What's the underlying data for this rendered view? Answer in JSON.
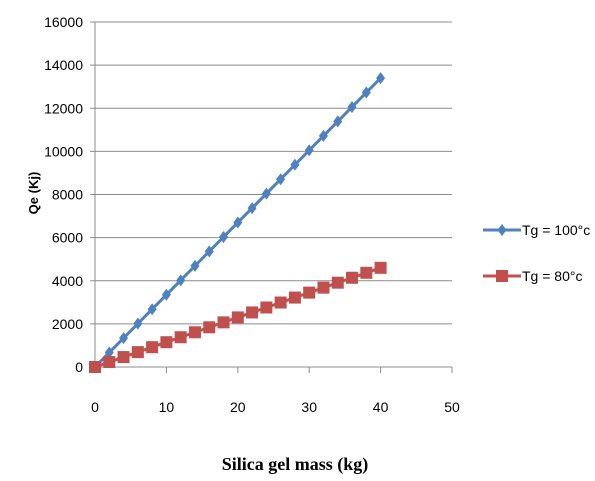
{
  "chart_data": {
    "type": "line",
    "title": "",
    "xlabel": "Silica gel mass (kg)",
    "ylabel": "Qe (Kj)",
    "xlim": [
      0,
      50
    ],
    "ylim": [
      0,
      16000
    ],
    "x_ticks": [
      0,
      10,
      20,
      30,
      40,
      50
    ],
    "y_ticks": [
      0,
      2000,
      4000,
      6000,
      8000,
      10000,
      12000,
      14000,
      16000
    ],
    "x_tick_labels": [
      "0",
      "10",
      "20",
      "30",
      "40",
      "50"
    ],
    "y_tick_labels": [
      "0",
      "2000",
      "4000",
      "6000",
      "8000",
      "10000",
      "12000",
      "14000",
      "16000"
    ],
    "grid": "horizontal",
    "legend_position": "right",
    "series": [
      {
        "name": "Tg = 100°c",
        "color": "#4F81BD",
        "marker": "diamond",
        "x": [
          0,
          2,
          4,
          6,
          8,
          10,
          12,
          14,
          16,
          18,
          20,
          22,
          24,
          26,
          28,
          30,
          32,
          34,
          36,
          38,
          40
        ],
        "y": [
          0,
          670,
          1340,
          2010,
          2680,
          3350,
          4020,
          4690,
          5360,
          6030,
          6700,
          7370,
          8040,
          8710,
          9380,
          10050,
          10720,
          11390,
          12060,
          12730,
          13400
        ]
      },
      {
        "name": "Tg = 80°c",
        "color": "#C0504D",
        "marker": "square",
        "x": [
          0,
          2,
          4,
          6,
          8,
          10,
          12,
          14,
          16,
          18,
          20,
          22,
          24,
          26,
          28,
          30,
          32,
          34,
          36,
          38,
          40
        ],
        "y": [
          0,
          230,
          460,
          690,
          920,
          1150,
          1380,
          1610,
          1840,
          2070,
          2300,
          2530,
          2760,
          2990,
          3220,
          3450,
          3680,
          3910,
          4140,
          4370,
          4600
        ]
      }
    ]
  }
}
